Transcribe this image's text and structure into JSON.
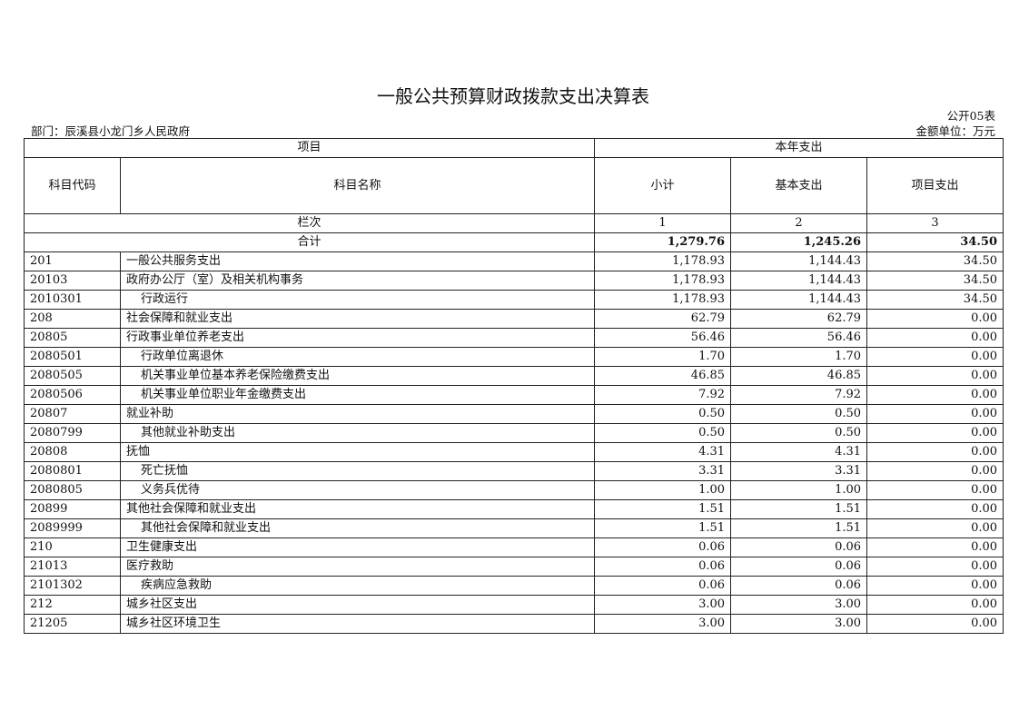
{
  "title": "一般公共预算财政拨款支出决算表",
  "table_code": "公开05表",
  "department": "部门：辰溪县小龙门乡人民政府",
  "unit": "金额单位：万元",
  "header": {
    "item": "项目",
    "current_year": "本年支出",
    "subject_code": "科目代码",
    "subject_name": "科目名称",
    "subtotal": "小计",
    "basic": "基本支出",
    "project": "项目支出",
    "column_index": "栏次",
    "col1": "1",
    "col2": "2",
    "col3": "3"
  },
  "total": {
    "label": "合计",
    "subtotal": "1,279.76",
    "basic": "1,245.26",
    "project": "34.50"
  },
  "rows": [
    {
      "code": "201",
      "name": "一般公共服务支出",
      "subtotal": "1,178.93",
      "basic": "1,144.43",
      "project": "34.50",
      "indent": false
    },
    {
      "code": "20103",
      "name": "政府办公厅（室）及相关机构事务",
      "subtotal": "1,178.93",
      "basic": "1,144.43",
      "project": "34.50",
      "indent": false
    },
    {
      "code": "2010301",
      "name": "行政运行",
      "subtotal": "1,178.93",
      "basic": "1,144.43",
      "project": "34.50",
      "indent": true
    },
    {
      "code": "208",
      "name": "社会保障和就业支出",
      "subtotal": "62.79",
      "basic": "62.79",
      "project": "0.00",
      "indent": false
    },
    {
      "code": "20805",
      "name": "行政事业单位养老支出",
      "subtotal": "56.46",
      "basic": "56.46",
      "project": "0.00",
      "indent": false
    },
    {
      "code": "2080501",
      "name": "行政单位离退休",
      "subtotal": "1.70",
      "basic": "1.70",
      "project": "0.00",
      "indent": true
    },
    {
      "code": "2080505",
      "name": "机关事业单位基本养老保险缴费支出",
      "subtotal": "46.85",
      "basic": "46.85",
      "project": "0.00",
      "indent": true
    },
    {
      "code": "2080506",
      "name": "机关事业单位职业年金缴费支出",
      "subtotal": "7.92",
      "basic": "7.92",
      "project": "0.00",
      "indent": true
    },
    {
      "code": "20807",
      "name": "就业补助",
      "subtotal": "0.50",
      "basic": "0.50",
      "project": "0.00",
      "indent": false
    },
    {
      "code": "2080799",
      "name": "其他就业补助支出",
      "subtotal": "0.50",
      "basic": "0.50",
      "project": "0.00",
      "indent": true
    },
    {
      "code": "20808",
      "name": "抚恤",
      "subtotal": "4.31",
      "basic": "4.31",
      "project": "0.00",
      "indent": false
    },
    {
      "code": "2080801",
      "name": "死亡抚恤",
      "subtotal": "3.31",
      "basic": "3.31",
      "project": "0.00",
      "indent": true
    },
    {
      "code": "2080805",
      "name": "义务兵优待",
      "subtotal": "1.00",
      "basic": "1.00",
      "project": "0.00",
      "indent": true
    },
    {
      "code": "20899",
      "name": "其他社会保障和就业支出",
      "subtotal": "1.51",
      "basic": "1.51",
      "project": "0.00",
      "indent": false
    },
    {
      "code": "2089999",
      "name": "其他社会保障和就业支出",
      "subtotal": "1.51",
      "basic": "1.51",
      "project": "0.00",
      "indent": true
    },
    {
      "code": "210",
      "name": "卫生健康支出",
      "subtotal": "0.06",
      "basic": "0.06",
      "project": "0.00",
      "indent": false
    },
    {
      "code": "21013",
      "name": "医疗救助",
      "subtotal": "0.06",
      "basic": "0.06",
      "project": "0.00",
      "indent": false
    },
    {
      "code": "2101302",
      "name": "疾病应急救助",
      "subtotal": "0.06",
      "basic": "0.06",
      "project": "0.00",
      "indent": true
    },
    {
      "code": "212",
      "name": "城乡社区支出",
      "subtotal": "3.00",
      "basic": "3.00",
      "project": "0.00",
      "indent": false
    },
    {
      "code": "21205",
      "name": "城乡社区环境卫生",
      "subtotal": "3.00",
      "basic": "3.00",
      "project": "0.00",
      "indent": false
    }
  ]
}
